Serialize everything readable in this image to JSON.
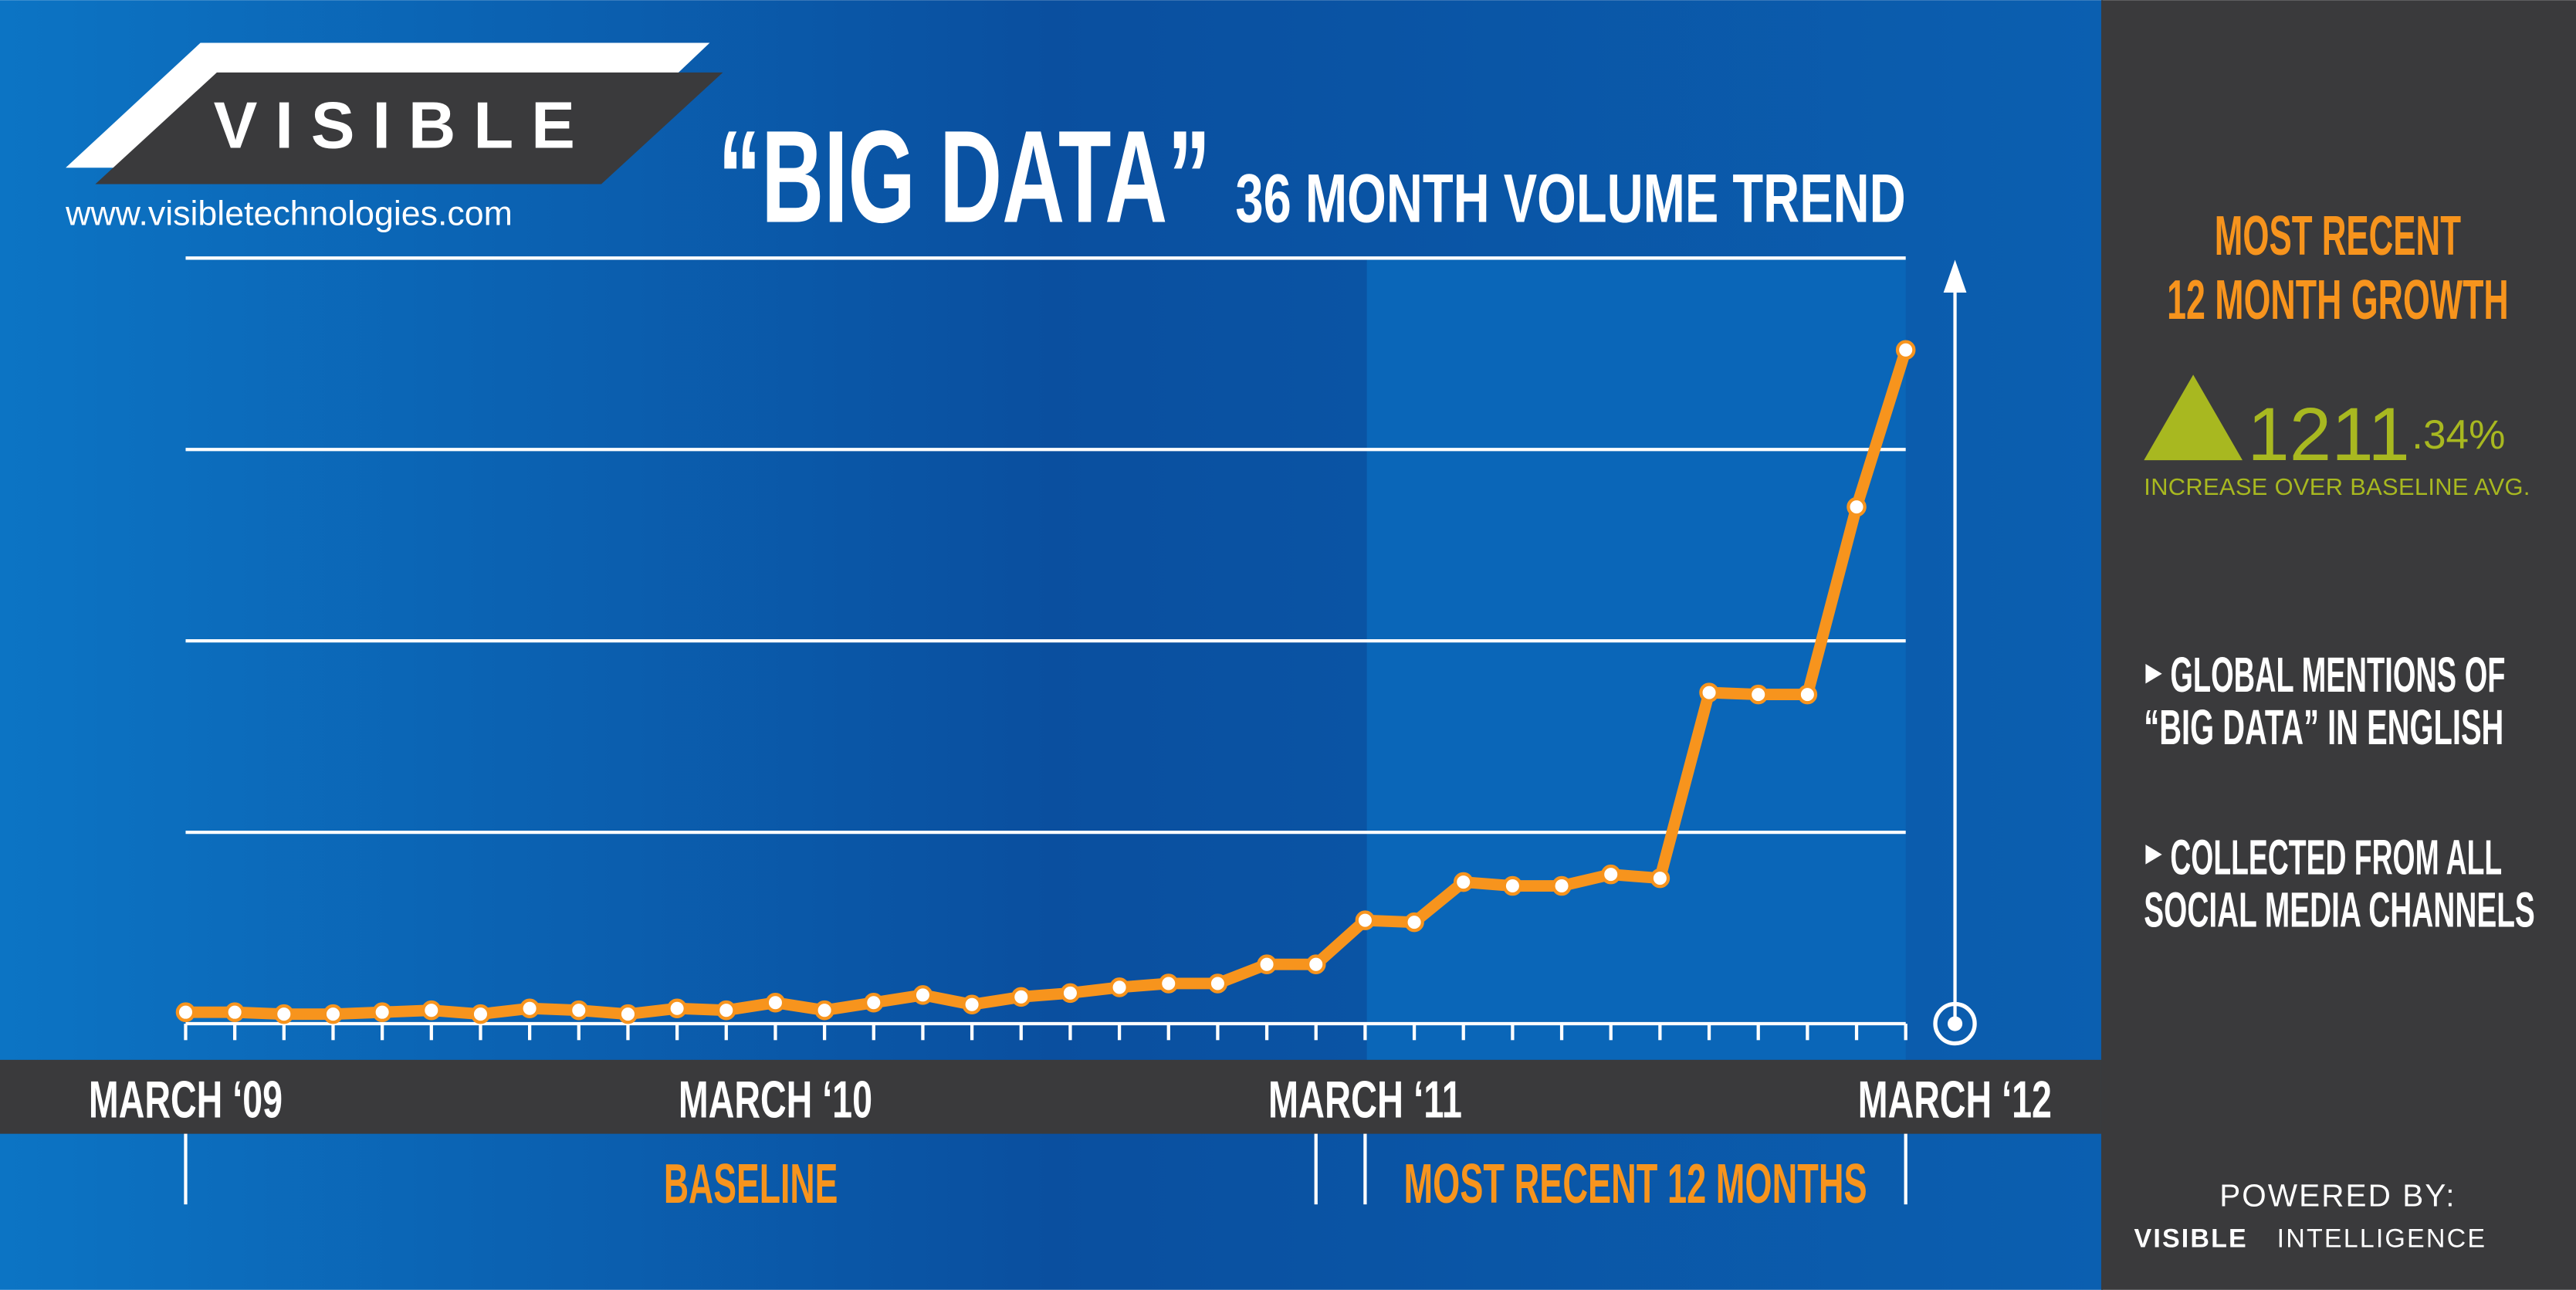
{
  "header": {
    "logo": "VISIBLE",
    "url": "www.visibletechnologies.com"
  },
  "chart_data": {
    "type": "line",
    "title": "“BIG DATA”",
    "subtitle": "36 MONTH VOLUME TREND",
    "categories": [
      "MARCH ‘09",
      null,
      null,
      null,
      null,
      null,
      null,
      null,
      null,
      null,
      null,
      null,
      "MARCH ‘10",
      null,
      null,
      null,
      null,
      null,
      null,
      null,
      null,
      null,
      null,
      null,
      "MARCH ‘11",
      null,
      null,
      null,
      null,
      null,
      null,
      null,
      null,
      null,
      null,
      null,
      "MARCH ‘12"
    ],
    "values": [
      0.06,
      0.06,
      0.05,
      0.05,
      0.06,
      0.07,
      0.05,
      0.08,
      0.07,
      0.05,
      0.08,
      0.07,
      0.11,
      0.07,
      0.11,
      0.15,
      0.1,
      0.14,
      0.16,
      0.19,
      0.21,
      0.21,
      0.31,
      0.31,
      0.54,
      0.53,
      0.74,
      0.72,
      0.72,
      0.78,
      0.76,
      1.73,
      1.72,
      1.72,
      2.7,
      3.52,
      null
    ],
    "color": "#f7941d",
    "ylim": [
      0,
      4
    ],
    "grid": true,
    "regions": [
      "BASELINE",
      "MOST RECENT 12 MONTHS"
    ]
  },
  "sidebar": {
    "heading": [
      "MOST RECENT",
      "12 MONTH GROWTH"
    ],
    "growth_integer": "1211",
    "growth_decimal": ".34%",
    "growth_note": "INCREASE OVER BASELINE AVG.",
    "bullets": [
      [
        "GLOBAL MENTIONS OF",
        "“BIG DATA” IN ENGLISH"
      ],
      [
        "COLLECTED FROM ALL",
        "SOCIAL MEDIA CHANNELS"
      ]
    ],
    "powered_by": "POWERED BY:",
    "brand": "VISIBLE",
    "brand_suffix": "INTELLIGENCE"
  }
}
